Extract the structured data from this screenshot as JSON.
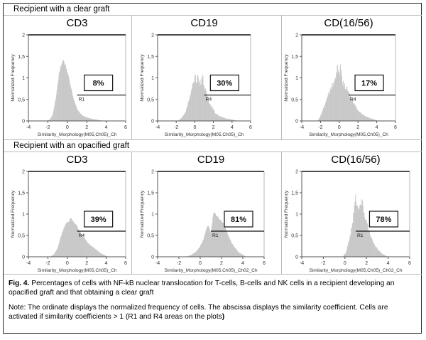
{
  "rows": [
    {
      "label": "Recipient with a clear graft"
    },
    {
      "label": "Recipient with an opacified graft"
    }
  ],
  "caption": {
    "fig_label": "Fig. 4.",
    "fig_text": " Percentages of cells with NF-kB nuclear translocation for T-cells, B-cells and NK cells in a recipient developing an opacified graft and that obtaining a clear graft",
    "note": "Note: The ordinate displays the normalized frequency of cells. The abscissa displays the similarity coefficient. Cells are activated if similarity coefficients > 1 (R1 and R4 areas on the plots",
    "note_end": ")"
  },
  "chart_data": [
    {
      "type": "area",
      "title": "CD3",
      "row": "Recipient with a clear graft",
      "xlabel": "Similarity_Morphology(M05,Ch05)_Ch",
      "ylabel": "Normalized Frequency",
      "xlim": [
        -4,
        6
      ],
      "ylim": [
        0,
        2
      ],
      "xticks": [
        "-4",
        "-2",
        "0",
        "2",
        "4",
        "6"
      ],
      "yticks": [
        "0",
        "0,5",
        "1",
        "1,5",
        "2"
      ],
      "region": "R1",
      "region_start": 1,
      "region_y": 0.6,
      "percent": "8%",
      "x": [
        -2.2,
        -1.8,
        -1.5,
        -1.2,
        -1.0,
        -0.8,
        -0.6,
        -0.5,
        -0.4,
        -0.3,
        -0.2,
        0,
        0.2,
        0.4,
        0.6,
        0.8,
        1.0,
        1.3,
        1.6,
        2.0,
        2.5,
        3.0,
        3.5,
        4.0
      ],
      "y": [
        0,
        0.03,
        0.15,
        0.5,
        0.85,
        1.15,
        1.3,
        1.38,
        1.43,
        1.35,
        1.28,
        1.15,
        0.95,
        0.75,
        0.55,
        0.4,
        0.28,
        0.18,
        0.12,
        0.08,
        0.05,
        0.03,
        0.01,
        0
      ]
    },
    {
      "type": "area",
      "title": "CD19",
      "row": "Recipient with a clear graft",
      "xlabel": "Similarity_Morphology(M05,Ch05)_Ch",
      "ylabel": "Normalized Frequency",
      "xlim": [
        -4,
        6
      ],
      "ylim": [
        0,
        2
      ],
      "xticks": [
        "-4",
        "-2",
        "0",
        "2",
        "4",
        "6"
      ],
      "yticks": [
        "0",
        "0,5",
        "1",
        "1,5",
        "2"
      ],
      "region": "R4",
      "region_start": 1,
      "region_y": 0.6,
      "percent": "30%",
      "x": [
        -1.8,
        -1.4,
        -1.0,
        -0.7,
        -0.4,
        -0.2,
        0,
        0.2,
        0.3,
        0.5,
        0.7,
        0.8,
        1.0,
        1.2,
        1.4,
        1.6,
        1.9,
        2.2,
        2.6,
        3.0,
        3.5,
        4.0,
        4.6
      ],
      "y": [
        0,
        0.08,
        0.2,
        0.45,
        0.65,
        0.85,
        1.05,
        0.9,
        1.08,
        0.85,
        0.95,
        1.08,
        0.8,
        0.65,
        0.55,
        0.4,
        0.3,
        0.18,
        0.12,
        0.08,
        0.05,
        0.03,
        0
      ]
    },
    {
      "type": "area",
      "title": "CD(16/56)",
      "row": "Recipient with a clear graft",
      "xlabel": "Similarity_Morphology(M05,Ch05)_Ch",
      "ylabel": "Normalized Frequency",
      "xlim": [
        -4,
        6
      ],
      "ylim": [
        0,
        2
      ],
      "xticks": [
        "-4",
        "-2",
        "0",
        "2",
        "4",
        "6"
      ],
      "yticks": [
        "0",
        "0,5",
        "1",
        "1,5",
        "2"
      ],
      "region": "R4",
      "region_start": 1,
      "region_y": 0.6,
      "percent": "17%",
      "x": [
        -2.3,
        -2.0,
        -1.6,
        -1.2,
        -0.8,
        -0.5,
        -0.3,
        -0.2,
        0,
        0.1,
        0.3,
        0.6,
        0.9,
        1.2,
        1.5,
        1.8,
        2.1,
        2.5,
        2.9,
        3.3,
        3.8,
        4.2
      ],
      "y": [
        0,
        0.12,
        0.35,
        0.6,
        0.8,
        0.92,
        1.1,
        1.42,
        0.98,
        1.4,
        0.9,
        0.8,
        0.7,
        0.55,
        0.45,
        0.32,
        0.22,
        0.15,
        0.1,
        0.06,
        0.03,
        0
      ]
    },
    {
      "type": "area",
      "title": "CD3",
      "row": "Recipient with an opacified graft",
      "xlabel": "Similarity_Morphology(M05,Ch05)_Ch",
      "ylabel": "Normalized Frequency",
      "xlim": [
        -4,
        6
      ],
      "ylim": [
        0,
        2
      ],
      "xticks": [
        "-4",
        "-2",
        "0",
        "2",
        "4",
        "6"
      ],
      "yticks": [
        "0",
        "0,5",
        "1",
        "1,5",
        "2"
      ],
      "region": "R4",
      "region_start": 1,
      "region_y": 0.6,
      "percent": "39%",
      "x": [
        -1.8,
        -1.4,
        -1.0,
        -0.7,
        -0.4,
        -0.1,
        0.2,
        0.4,
        0.6,
        0.9,
        1.2,
        1.5,
        1.8,
        2.1,
        2.5,
        2.9,
        3.3,
        3.7,
        4.2
      ],
      "y": [
        0,
        0.05,
        0.2,
        0.45,
        0.65,
        0.78,
        0.85,
        0.9,
        0.82,
        0.75,
        0.62,
        0.5,
        0.42,
        0.33,
        0.25,
        0.18,
        0.1,
        0.05,
        0
      ]
    },
    {
      "type": "area",
      "title": "CD19",
      "row": "Recipient with an opacified graft",
      "xlabel": "Similarity_Morphology(M05,Ch05)_Ch02_Ch",
      "ylabel": "Normalized Frequency",
      "xlim": [
        -4,
        6
      ],
      "ylim": [
        0,
        2
      ],
      "xticks": [
        "-4",
        "-2",
        "0",
        "2",
        "4",
        "6"
      ],
      "yticks": [
        "0",
        "0,5",
        "1",
        "1,5",
        "2"
      ],
      "region": "R1",
      "region_start": 1,
      "region_y": 0.6,
      "percent": "81%",
      "x": [
        -1.3,
        -0.8,
        -0.4,
        0,
        0.3,
        0.6,
        0.8,
        1.0,
        1.2,
        1.3,
        1.5,
        1.8,
        2.1,
        2.4,
        2.7,
        3.0,
        3.3,
        3.6,
        4.0,
        4.3
      ],
      "y": [
        0,
        0.05,
        0.12,
        0.25,
        0.4,
        0.7,
        0.72,
        0.55,
        0.95,
        1.05,
        0.95,
        0.9,
        0.82,
        0.65,
        0.45,
        0.3,
        0.2,
        0.1,
        0.05,
        0
      ]
    },
    {
      "type": "area",
      "title": "CD(16/56)",
      "row": "Recipient with an opacified graft",
      "xlabel": "Similarity_Morphology(M05,Ch05)_Ch02_Ch",
      "ylabel": "Normalized Frequency",
      "xlim": [
        -4,
        6
      ],
      "ylim": [
        0,
        2
      ],
      "xticks": [
        "-4",
        "-2",
        "0",
        "2",
        "4",
        "6"
      ],
      "yticks": [
        "0",
        "0,5",
        "1",
        "1,5",
        "2"
      ],
      "region": "R1",
      "region_start": 1,
      "region_y": 0.6,
      "percent": "78%",
      "x": [
        -0.2,
        0.1,
        0.4,
        0.7,
        0.9,
        1.0,
        1.2,
        1.4,
        1.6,
        1.8,
        2.0,
        2.2,
        2.5,
        2.8,
        3.1,
        3.5,
        4.0
      ],
      "y": [
        0,
        0.1,
        0.4,
        0.8,
        1.2,
        1.42,
        1.1,
        1.3,
        1.25,
        1.0,
        0.8,
        0.6,
        0.4,
        0.25,
        0.15,
        0.06,
        0
      ]
    }
  ]
}
